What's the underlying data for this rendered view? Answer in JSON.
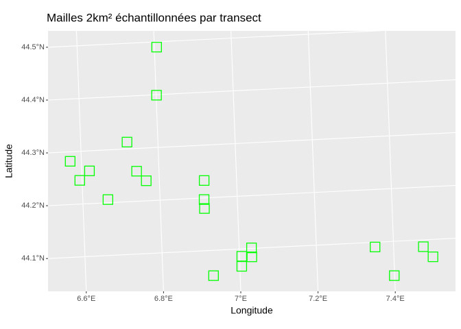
{
  "chart_data": {
    "type": "scatter",
    "title": "Mailles 2km² échantillonnées par transect",
    "x_label": "Longitude",
    "y_label": "Latitude",
    "x": [
      6.806,
      6.801,
      6.72,
      6.571,
      6.62,
      6.594,
      6.742,
      6.766,
      6.665,
      6.916,
      6.914,
      6.914,
      7.032,
      7.032,
      7.006,
      7.005,
      6.931,
      7.352,
      7.399,
      7.477,
      7.501
    ],
    "y": [
      44.49,
      44.399,
      44.313,
      44.282,
      44.262,
      44.245,
      44.257,
      44.238,
      44.206,
      44.233,
      44.197,
      44.18,
      44.101,
      44.084,
      44.086,
      44.067,
      44.052,
      44.091,
      44.035,
      44.087,
      44.067
    ],
    "color": "#00ff00",
    "xlim": [
      6.5,
      7.557
    ],
    "ylim": [
      44.038,
      44.532
    ],
    "xticks": [
      {
        "value": 6.6,
        "label": "6.6°E"
      },
      {
        "value": 6.8,
        "label": "6.8°E"
      },
      {
        "value": 7.0,
        "label": "7°E"
      },
      {
        "value": 7.2,
        "label": "7.2°E"
      },
      {
        "value": 7.4,
        "label": "7.4°E"
      }
    ],
    "yticks": [
      {
        "value": 44.1,
        "label": "44.1°N"
      },
      {
        "value": 44.2,
        "label": "44.2°N"
      },
      {
        "value": 44.3,
        "label": "44.3°N"
      },
      {
        "value": 44.4,
        "label": "44.4°N"
      },
      {
        "value": 44.5,
        "label": "44.5°N"
      }
    ],
    "grid": true
  }
}
